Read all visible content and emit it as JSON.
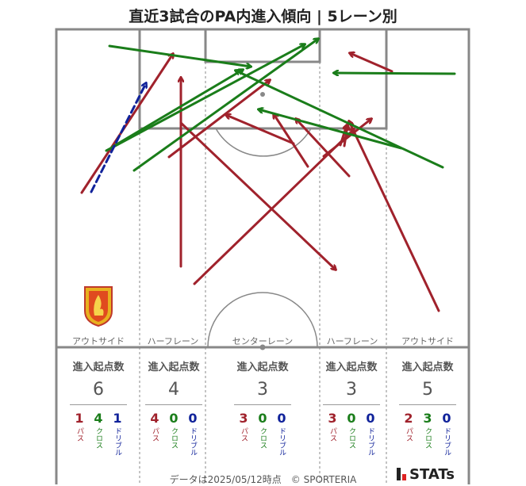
{
  "title": "直近3試合のPA内進入傾向 | 5レーン別",
  "colors": {
    "pass": "#a0222c",
    "cross": "#1a7d1a",
    "dribble": "#10229a"
  },
  "lanes": [
    {
      "name": "アウトサイド",
      "header": "進入起点数",
      "total": "6",
      "pass": "1",
      "cross": "4",
      "dribble": "1"
    },
    {
      "name": "ハーフレーン",
      "header": "進入起点数",
      "total": "4",
      "pass": "4",
      "cross": "0",
      "dribble": "0"
    },
    {
      "name": "センターレーン",
      "header": "進入起点数",
      "total": "3",
      "pass": "3",
      "cross": "0",
      "dribble": "0"
    },
    {
      "name": "ハーフレーン",
      "header": "進入起点数",
      "total": "3",
      "pass": "3",
      "cross": "0",
      "dribble": "0"
    },
    {
      "name": "アウトサイド",
      "header": "進入起点数",
      "total": "5",
      "pass": "2",
      "cross": "3",
      "dribble": "0"
    }
  ],
  "type_labels": {
    "pass": "パス",
    "cross": "クロス",
    "dribble": "ドリブル"
  },
  "footer": "データは2025/05/12時点　© SPORTERIA",
  "brand": "STATs",
  "chart_data": {
    "type": "arrow-map",
    "title": "直近3試合のPA内進入傾向 | 5レーン別",
    "arrows": [
      {
        "type": "pass",
        "from": [
          103,
          243
        ],
        "to": [
          218,
          68
        ]
      },
      {
        "type": "pass",
        "from": [
          228,
          336
        ],
        "to": [
          228,
          98
        ]
      },
      {
        "type": "pass",
        "from": [
          213,
          198
        ],
        "to": [
          340,
          101
        ]
      },
      {
        "type": "pass",
        "from": [
          245,
          358
        ],
        "to": [
          446,
          163
        ]
      },
      {
        "type": "pass",
        "from": [
          228,
          155
        ],
        "to": [
          423,
          340
        ]
      },
      {
        "type": "pass",
        "from": [
          388,
          210
        ],
        "to": [
          345,
          144
        ]
      },
      {
        "type": "pass",
        "from": [
          370,
          181
        ],
        "to": [
          285,
          145
        ]
      },
      {
        "type": "pass",
        "from": [
          408,
          197
        ],
        "to": [
          468,
          150
        ]
      },
      {
        "type": "pass",
        "from": [
          440,
          222
        ],
        "to": [
          373,
          150
        ]
      },
      {
        "type": "pass",
        "from": [
          553,
          392
        ],
        "to": [
          440,
          153
        ]
      },
      {
        "type": "pass",
        "from": [
          494,
          90
        ],
        "to": [
          441,
          67
        ]
      },
      {
        "type": "pass",
        "from": [
          434,
          184
        ],
        "to": [
          438,
          158
        ]
      },
      {
        "type": "pass",
        "from": [
          429,
          183
        ],
        "to": [
          437,
          158
        ]
      },
      {
        "type": "cross",
        "from": [
          138,
          58
        ],
        "to": [
          316,
          84
        ]
      },
      {
        "type": "cross",
        "from": [
          134,
          190
        ],
        "to": [
          384,
          56
        ]
      },
      {
        "type": "cross",
        "from": [
          169,
          215
        ],
        "to": [
          401,
          49
        ]
      },
      {
        "type": "cross",
        "from": [
          142,
          185
        ],
        "to": [
          306,
          88
        ]
      },
      {
        "type": "cross",
        "from": [
          558,
          211
        ],
        "to": [
          297,
          89
        ]
      },
      {
        "type": "cross",
        "from": [
          506,
          187
        ],
        "to": [
          326,
          138
        ]
      },
      {
        "type": "cross",
        "from": [
          573,
          93
        ],
        "to": [
          421,
          92
        ]
      },
      {
        "type": "dribble",
        "from": [
          115,
          242
        ],
        "to": [
          184,
          105
        ]
      }
    ]
  }
}
